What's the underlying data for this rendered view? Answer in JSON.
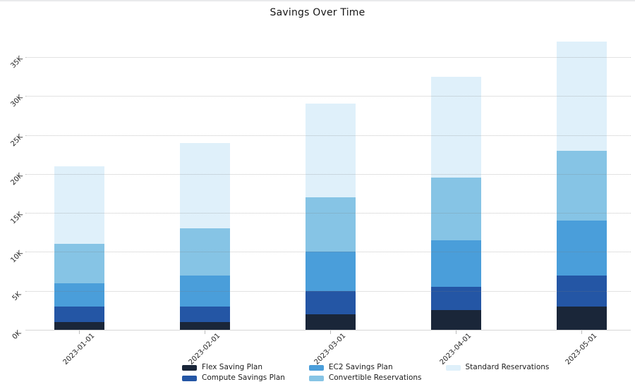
{
  "title": "Savings Over Time",
  "chart_data": {
    "type": "bar",
    "stacked": true,
    "title": "Savings Over Time",
    "categories": [
      "2023-01-01",
      "2023-02-01",
      "2023-03-01",
      "2023-04-01",
      "2023-05-01"
    ],
    "series": [
      {
        "name": "Flex Saving Plan",
        "color": "#1A2639",
        "values": [
          1000,
          1000,
          2000,
          2500,
          3000
        ]
      },
      {
        "name": "Compute Savings Plan",
        "color": "#2456A5",
        "values": [
          2000,
          2000,
          3000,
          3000,
          4000
        ]
      },
      {
        "name": "EC2 Savings Plan",
        "color": "#4A9EDA",
        "values": [
          3000,
          4000,
          5000,
          6000,
          7000
        ]
      },
      {
        "name": "Convertible Reservations",
        "color": "#86C4E5",
        "values": [
          5000,
          6000,
          7000,
          8000,
          9000
        ]
      },
      {
        "name": "Standard Reservations",
        "color": "#DFF0FA",
        "values": [
          10000,
          11000,
          12000,
          13000,
          14000
        ]
      }
    ],
    "totals": [
      21000,
      24000,
      29000,
      32500,
      37000
    ],
    "xlabel": "",
    "ylabel": "",
    "y_ticks": [
      "0K",
      "5K",
      "10K",
      "15K",
      "20K",
      "25K",
      "30K",
      "35K"
    ],
    "y_tick_values": [
      0,
      5000,
      10000,
      15000,
      20000,
      25000,
      30000,
      35000
    ],
    "ylim": [
      0,
      38500
    ],
    "grid": "horizontal-dotted",
    "tick_label_rotation": 45,
    "legend_position": "bottom",
    "legend_columns": 3
  },
  "colors": {
    "background": "#ffffff",
    "gridline": "#cccccc",
    "axis_line": "#d6d6d6",
    "tick_text": "#262626",
    "title_text": "#161616"
  }
}
